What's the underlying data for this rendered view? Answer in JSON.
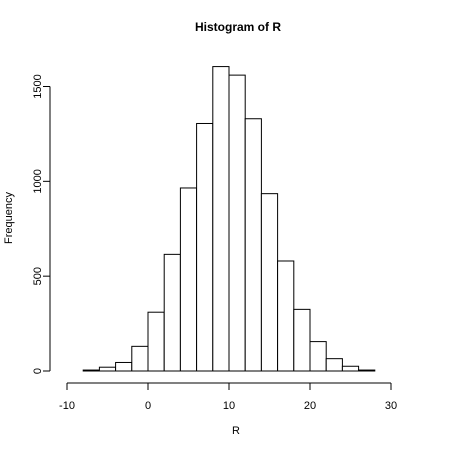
{
  "chart_data": {
    "type": "bar",
    "title": "Histogram of R",
    "xlabel": "R",
    "ylabel": "Frequency",
    "xlim": [
      -10,
      30
    ],
    "ylim": [
      0,
      1600
    ],
    "x_ticks": [
      "-10",
      "0",
      "10",
      "20",
      "30"
    ],
    "y_ticks": [
      "0",
      "500",
      "1000",
      "1500"
    ],
    "bin_width": 2,
    "bins": [
      {
        "x0": -8,
        "x1": -6,
        "value": 5
      },
      {
        "x0": -6,
        "x1": -4,
        "value": 20
      },
      {
        "x0": -4,
        "x1": -2,
        "value": 45
      },
      {
        "x0": -2,
        "x1": 0,
        "value": 130
      },
      {
        "x0": 0,
        "x1": 2,
        "value": 310
      },
      {
        "x0": 2,
        "x1": 4,
        "value": 615
      },
      {
        "x0": 4,
        "x1": 6,
        "value": 965
      },
      {
        "x0": 6,
        "x1": 8,
        "value": 1305
      },
      {
        "x0": 8,
        "x1": 10,
        "value": 1605
      },
      {
        "x0": 10,
        "x1": 12,
        "value": 1560
      },
      {
        "x0": 12,
        "x1": 14,
        "value": 1330
      },
      {
        "x0": 14,
        "x1": 16,
        "value": 935
      },
      {
        "x0": 16,
        "x1": 18,
        "value": 580
      },
      {
        "x0": 18,
        "x1": 20,
        "value": 325
      },
      {
        "x0": 20,
        "x1": 22,
        "value": 155
      },
      {
        "x0": 22,
        "x1": 24,
        "value": 65
      },
      {
        "x0": 24,
        "x1": 26,
        "value": 25
      },
      {
        "x0": 26,
        "x1": 28,
        "value": 5
      }
    ],
    "grid": false,
    "legend": "none"
  }
}
